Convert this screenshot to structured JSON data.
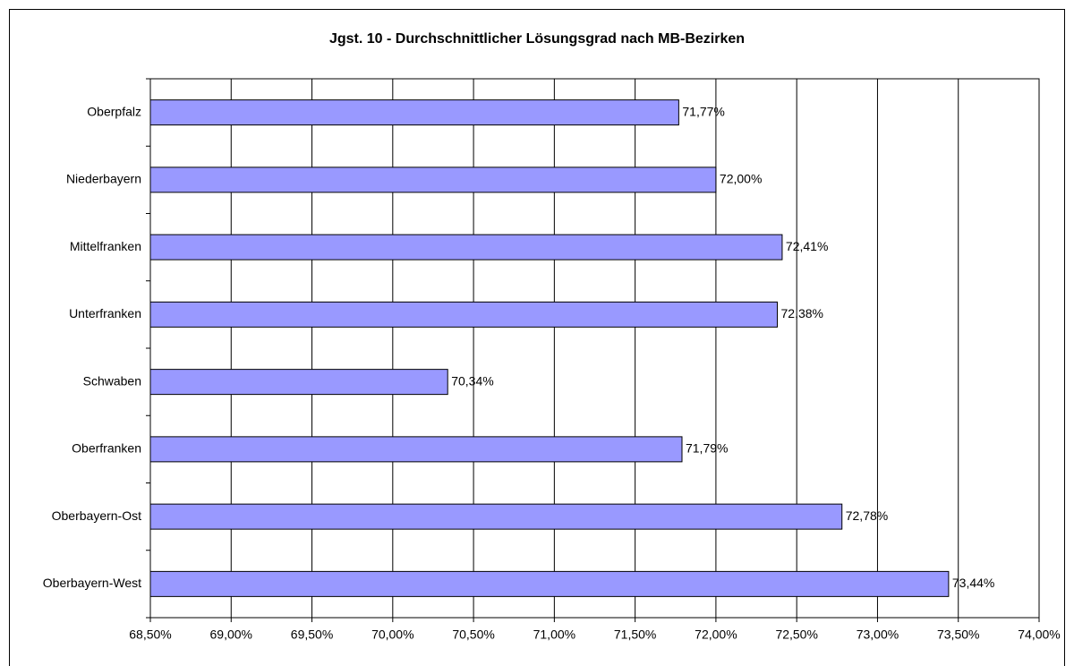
{
  "chart_data": {
    "type": "barh",
    "title": "Jgst. 10 - Durchschnittlicher Lösungsgrad nach MB-Bezirken",
    "categories": [
      "Oberpfalz",
      "Niederbayern",
      "Mittelfranken",
      "Unterfranken",
      "Schwaben",
      "Oberfranken",
      "Oberbayern-Ost",
      "Oberbayern-West"
    ],
    "values": [
      71.77,
      72.0,
      72.41,
      72.38,
      70.34,
      71.79,
      72.78,
      73.44
    ],
    "value_labels": [
      "71,77%",
      "72,00%",
      "72,41%",
      "72,38%",
      "70,34%",
      "71,79%",
      "72,78%",
      "73,44%"
    ],
    "color": "#9999ff",
    "xlim": [
      68.5,
      74.0
    ],
    "xticks": [
      {
        "value": 68.5,
        "label": "68,50%"
      },
      {
        "value": 69.0,
        "label": "69,00%"
      },
      {
        "value": 69.5,
        "label": "69,50%"
      },
      {
        "value": 70.0,
        "label": "70,00%"
      },
      {
        "value": 70.5,
        "label": "70,50%"
      },
      {
        "value": 71.0,
        "label": "71,00%"
      },
      {
        "value": 71.5,
        "label": "71,50%"
      },
      {
        "value": 72.0,
        "label": "72,00%"
      },
      {
        "value": 72.5,
        "label": "72,50%"
      },
      {
        "value": 73.0,
        "label": "73,00%"
      },
      {
        "value": 73.5,
        "label": "73,50%"
      },
      {
        "value": 74.0,
        "label": "74,00%"
      }
    ],
    "grid": true
  }
}
